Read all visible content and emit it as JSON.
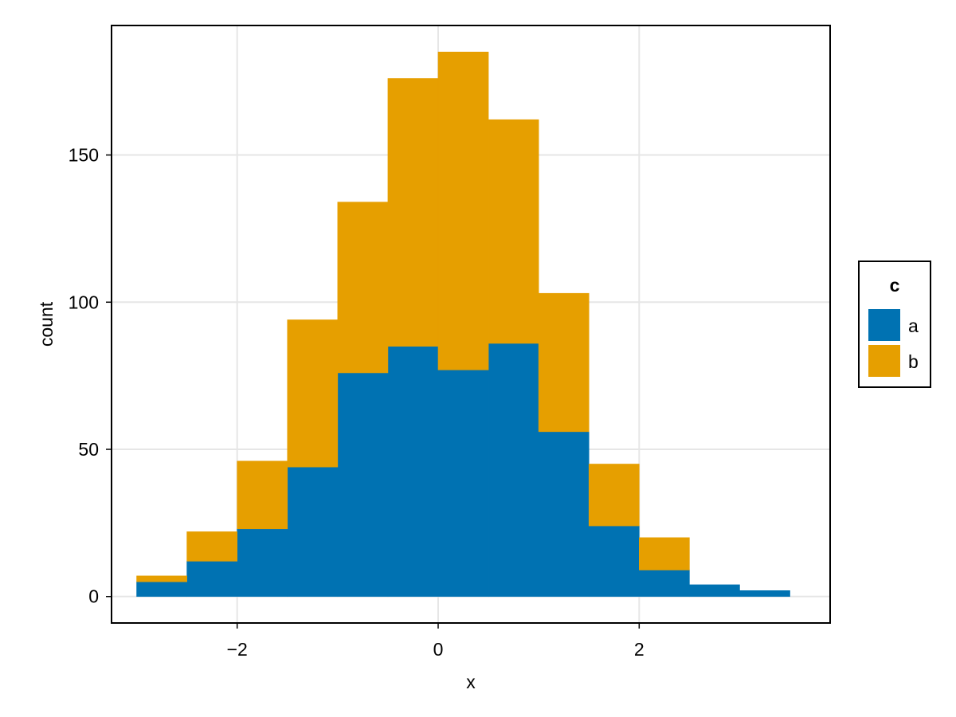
{
  "chart_data": {
    "type": "bar",
    "stacked": true,
    "title": "",
    "xlabel": "x",
    "ylabel": "count",
    "xlim": [
      -3.25,
      3.9
    ],
    "ylim": [
      -9,
      194
    ],
    "grid": true,
    "bin_edges": [
      -3,
      -2.5,
      -2,
      -1.5,
      -1,
      -0.5,
      0,
      0.5,
      1,
      1.5,
      2,
      2.5,
      3,
      3.5
    ],
    "x_ticks": [
      -2,
      0,
      2
    ],
    "x_tick_labels": [
      "−2",
      "0",
      "2"
    ],
    "y_ticks": [
      0,
      50,
      100,
      150
    ],
    "y_tick_labels": [
      "0",
      "50",
      "100",
      "150"
    ],
    "series": [
      {
        "name": "a",
        "color": "#0072B2",
        "values": [
          5,
          12,
          23,
          44,
          76,
          85,
          77,
          86,
          56,
          24,
          9,
          4,
          2
        ]
      },
      {
        "name": "b",
        "color": "#E69F00",
        "values": [
          2,
          10,
          23,
          50,
          58,
          91,
          108,
          76,
          47,
          21,
          11,
          0,
          0
        ]
      }
    ],
    "legend": {
      "title": "c",
      "position": "right",
      "items": [
        "a",
        "b"
      ]
    }
  }
}
